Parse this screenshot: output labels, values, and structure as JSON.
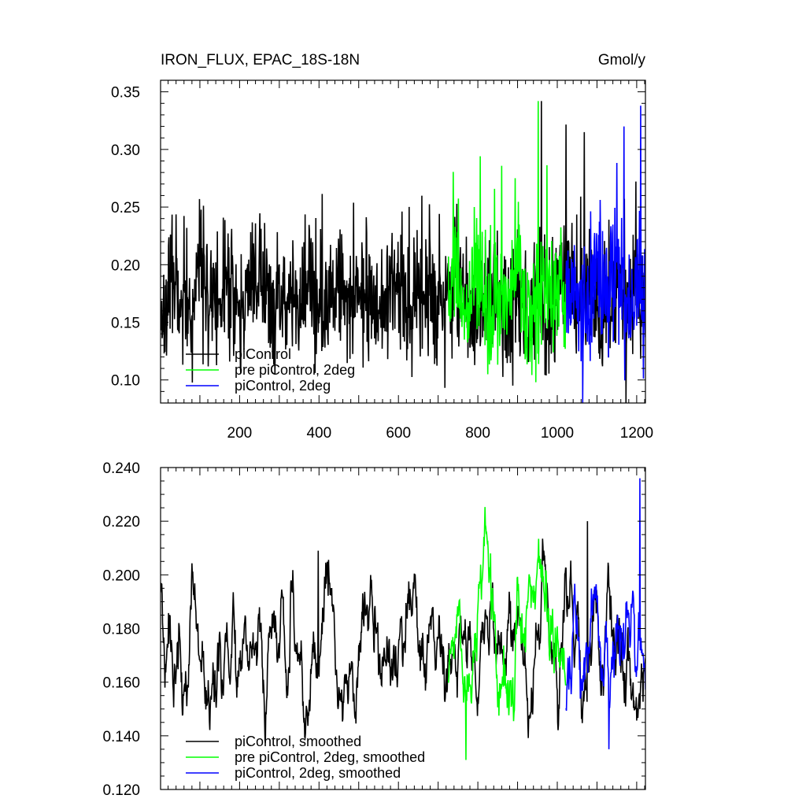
{
  "chart_data": [
    {
      "type": "line",
      "title": "IRON_FLUX, EPAC_18S-18N",
      "units": "Gmol/y",
      "xlim": [
        1,
        1222
      ],
      "ylim": [
        0.08,
        0.36
      ],
      "x_ticks": [
        200,
        400,
        600,
        800,
        1000,
        1200
      ],
      "x_tick_labels": [
        "200",
        "400",
        "600",
        "800",
        "1000",
        "1200"
      ],
      "y_ticks": [
        0.1,
        0.15,
        0.2,
        0.25,
        0.3,
        0.35
      ],
      "y_tick_labels": [
        "0.10",
        "0.15",
        "0.20",
        "0.25",
        "0.30",
        "0.35"
      ],
      "legend_position": "bottom-left",
      "series": [
        {
          "name": "piControl",
          "color": "#000000",
          "x_range": [
            1,
            1222
          ],
          "values_sampled_every_25": [
            0.155,
            0.18,
            0.17,
            0.15,
            0.21,
            0.16,
            0.17,
            0.19,
            0.15,
            0.18,
            0.2,
            0.16,
            0.17,
            0.18,
            0.16,
            0.19,
            0.15,
            0.17,
            0.2,
            0.16,
            0.18,
            0.17,
            0.16,
            0.19,
            0.18,
            0.16,
            0.17,
            0.18,
            0.16,
            0.17,
            0.19,
            0.16,
            0.15,
            0.18,
            0.17,
            0.16,
            0.19,
            0.14,
            0.18,
            0.15,
            0.17,
            0.2,
            0.16,
            0.18,
            0.17,
            0.15,
            0.19,
            0.16,
            0.18,
            0.17
          ]
        },
        {
          "name": "pre piControl, 2deg",
          "color": "#00ff00",
          "x_range": [
            726,
            1022
          ],
          "values_sampled_every_25": [
            0.17,
            0.19,
            0.15,
            0.2,
            0.14,
            0.18,
            0.16,
            0.21,
            0.15,
            0.17,
            0.19,
            0.16
          ]
        },
        {
          "name": "piControl, 2deg",
          "color": "#0000ff",
          "x_range": [
            1022,
            1222
          ],
          "values_sampled_every_25": [
            0.16,
            0.18,
            0.15,
            0.19,
            0.17,
            0.2,
            0.16,
            0.18,
            0.17
          ]
        }
      ],
      "peaks": [
        {
          "series": "piControl",
          "x": 960,
          "value": 0.342
        },
        {
          "series": "pre piControl, 2deg",
          "x": 952,
          "value": 0.342
        },
        {
          "series": "piControl",
          "x": 1068,
          "value": 0.315
        },
        {
          "series": "piControl, 2deg",
          "x": 1210,
          "value": 0.338
        },
        {
          "series": "piControl, 2deg",
          "x": 1168,
          "value": 0.32
        },
        {
          "series": "piControl, 2deg",
          "x": 1064,
          "value": 0.08
        }
      ]
    },
    {
      "type": "line",
      "xlim": [
        1,
        1222
      ],
      "ylim": [
        0.12,
        0.24
      ],
      "x_ticks": [
        200,
        400,
        600,
        800,
        1000,
        1200
      ],
      "y_ticks": [
        0.12,
        0.14,
        0.16,
        0.18,
        0.2,
        0.22,
        0.24
      ],
      "y_tick_labels": [
        "0.120",
        "0.140",
        "0.160",
        "0.180",
        "0.200",
        "0.220",
        "0.240"
      ],
      "legend_position": "bottom-left",
      "series": [
        {
          "name": "piControl, smoothed",
          "color": "#000000",
          "x_range": [
            1,
            1222
          ],
          "values_sampled_every_25": [
            0.18,
            0.16,
            0.17,
            0.19,
            0.165,
            0.155,
            0.17,
            0.165,
            0.16,
            0.175,
            0.17,
            0.165,
            0.17,
            0.19,
            0.16,
            0.15,
            0.18,
            0.205,
            0.15,
            0.16,
            0.17,
            0.185,
            0.17,
            0.16,
            0.175,
            0.19,
            0.165,
            0.175,
            0.17,
            0.16,
            0.175,
            0.17,
            0.165,
            0.175,
            0.165,
            0.16,
            0.19,
            0.15,
            0.17,
            0.2,
            0.16,
            0.18,
            0.165,
            0.15,
            0.195,
            0.165,
            0.175,
            0.16,
            0.15,
            0.17
          ]
        },
        {
          "name": "pre piControl, 2deg, smoothed",
          "color": "#00ff00",
          "x_range": [
            726,
            1022
          ],
          "values_sampled_every_25": [
            0.16,
            0.18,
            0.145,
            0.19,
            0.205,
            0.16,
            0.15,
            0.19,
            0.17,
            0.2,
            0.165,
            0.175
          ]
        },
        {
          "name": "piControl, 2deg, smoothed",
          "color": "#0000ff",
          "x_range": [
            1022,
            1222
          ],
          "values_sampled_every_25": [
            0.165,
            0.18,
            0.155,
            0.2,
            0.17,
            0.16,
            0.185,
            0.165,
            0.175
          ]
        }
      ],
      "peaks": [
        {
          "series": "piControl, 2deg, smoothed",
          "x": 1208,
          "value": 0.236
        },
        {
          "series": "piControl, smoothed",
          "x": 1076,
          "value": 0.22
        },
        {
          "series": "piControl, smoothed",
          "x": 398,
          "value": 0.209
        },
        {
          "series": "pre piControl, 2deg, smoothed",
          "x": 832,
          "value": 0.208
        },
        {
          "series": "piControl, 2deg, smoothed",
          "x": 1130,
          "value": 0.135
        },
        {
          "series": "pre piControl, 2deg, smoothed",
          "x": 770,
          "value": 0.131
        }
      ]
    }
  ]
}
